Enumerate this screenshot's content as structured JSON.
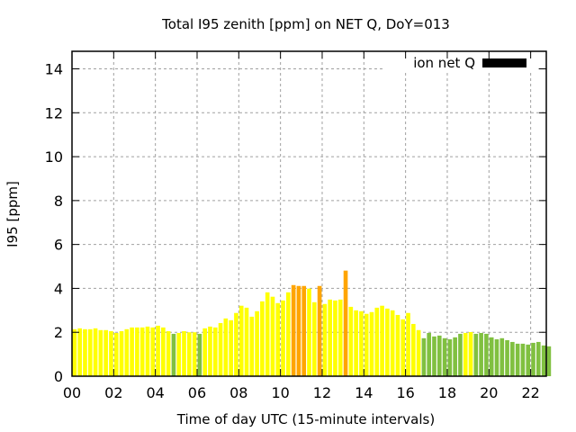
{
  "chart_data": {
    "type": "bar",
    "title": "Total I95 zenith [ppm] on NET Q, DoY=013",
    "xlabel": "Time of day UTC (15-minute intervals)",
    "ylabel": "I95 [ppm]",
    "xlim": [
      0,
      22.75
    ],
    "ylim": [
      0,
      14.8
    ],
    "grid": true,
    "legend": {
      "label": "ion net Q",
      "placement": "top-right",
      "color": "#000000"
    },
    "xticks": [
      {
        "v": 0,
        "label": "00"
      },
      {
        "v": 2,
        "label": "02"
      },
      {
        "v": 4,
        "label": "04"
      },
      {
        "v": 6,
        "label": "06"
      },
      {
        "v": 8,
        "label": "08"
      },
      {
        "v": 10,
        "label": "10"
      },
      {
        "v": 12,
        "label": "12"
      },
      {
        "v": 14,
        "label": "14"
      },
      {
        "v": 16,
        "label": "16"
      },
      {
        "v": 18,
        "label": "18"
      },
      {
        "v": 20,
        "label": "20"
      },
      {
        "v": 22,
        "label": "22"
      }
    ],
    "yticks": [
      {
        "v": 0,
        "label": "0"
      },
      {
        "v": 2,
        "label": "2"
      },
      {
        "v": 4,
        "label": "4"
      },
      {
        "v": 6,
        "label": "6"
      },
      {
        "v": 8,
        "label": "8"
      },
      {
        "v": 10,
        "label": "10"
      },
      {
        "v": 12,
        "label": "12"
      },
      {
        "v": 14,
        "label": "14"
      }
    ],
    "interval_hours": 0.25,
    "colors": {
      "Y": "#ffff00",
      "G": "#80c040",
      "O": "#ffa500"
    },
    "values": [
      2.14,
      2.18,
      2.14,
      2.14,
      2.18,
      2.1,
      2.1,
      2.05,
      1.97,
      2.05,
      2.14,
      2.22,
      2.22,
      2.22,
      2.26,
      2.22,
      2.3,
      2.22,
      2.05,
      1.93,
      1.97,
      2.05,
      2.0,
      2.0,
      1.93,
      2.18,
      2.26,
      2.22,
      2.42,
      2.63,
      2.55,
      2.88,
      3.21,
      3.12,
      2.71,
      2.96,
      3.41,
      3.82,
      3.62,
      3.33,
      3.45,
      3.82,
      4.15,
      4.11,
      4.11,
      3.99,
      3.37,
      4.11,
      3.29,
      3.49,
      3.45,
      3.49,
      4.81,
      3.16,
      3.0,
      2.96,
      2.84,
      2.92,
      3.12,
      3.21,
      3.08,
      3.0,
      2.79,
      2.59,
      2.88,
      2.38,
      2.1,
      1.73,
      1.97,
      1.81,
      1.85,
      1.73,
      1.68,
      1.77,
      1.93,
      1.97,
      2.01,
      1.93,
      1.97,
      1.93,
      1.77,
      1.68,
      1.73,
      1.64,
      1.56,
      1.48,
      1.48,
      1.44,
      1.52,
      1.56,
      1.4,
      1.36
    ],
    "classes": "YYYYYYYYYYYYYYYYYYYGYYYYGYYYYYYYYYYYYYYYYYOOOYYOYYYYOYYYYYYYYYYYYYYGGGGGGGGYYGGGGGGGGGGGGGGGG"
  }
}
